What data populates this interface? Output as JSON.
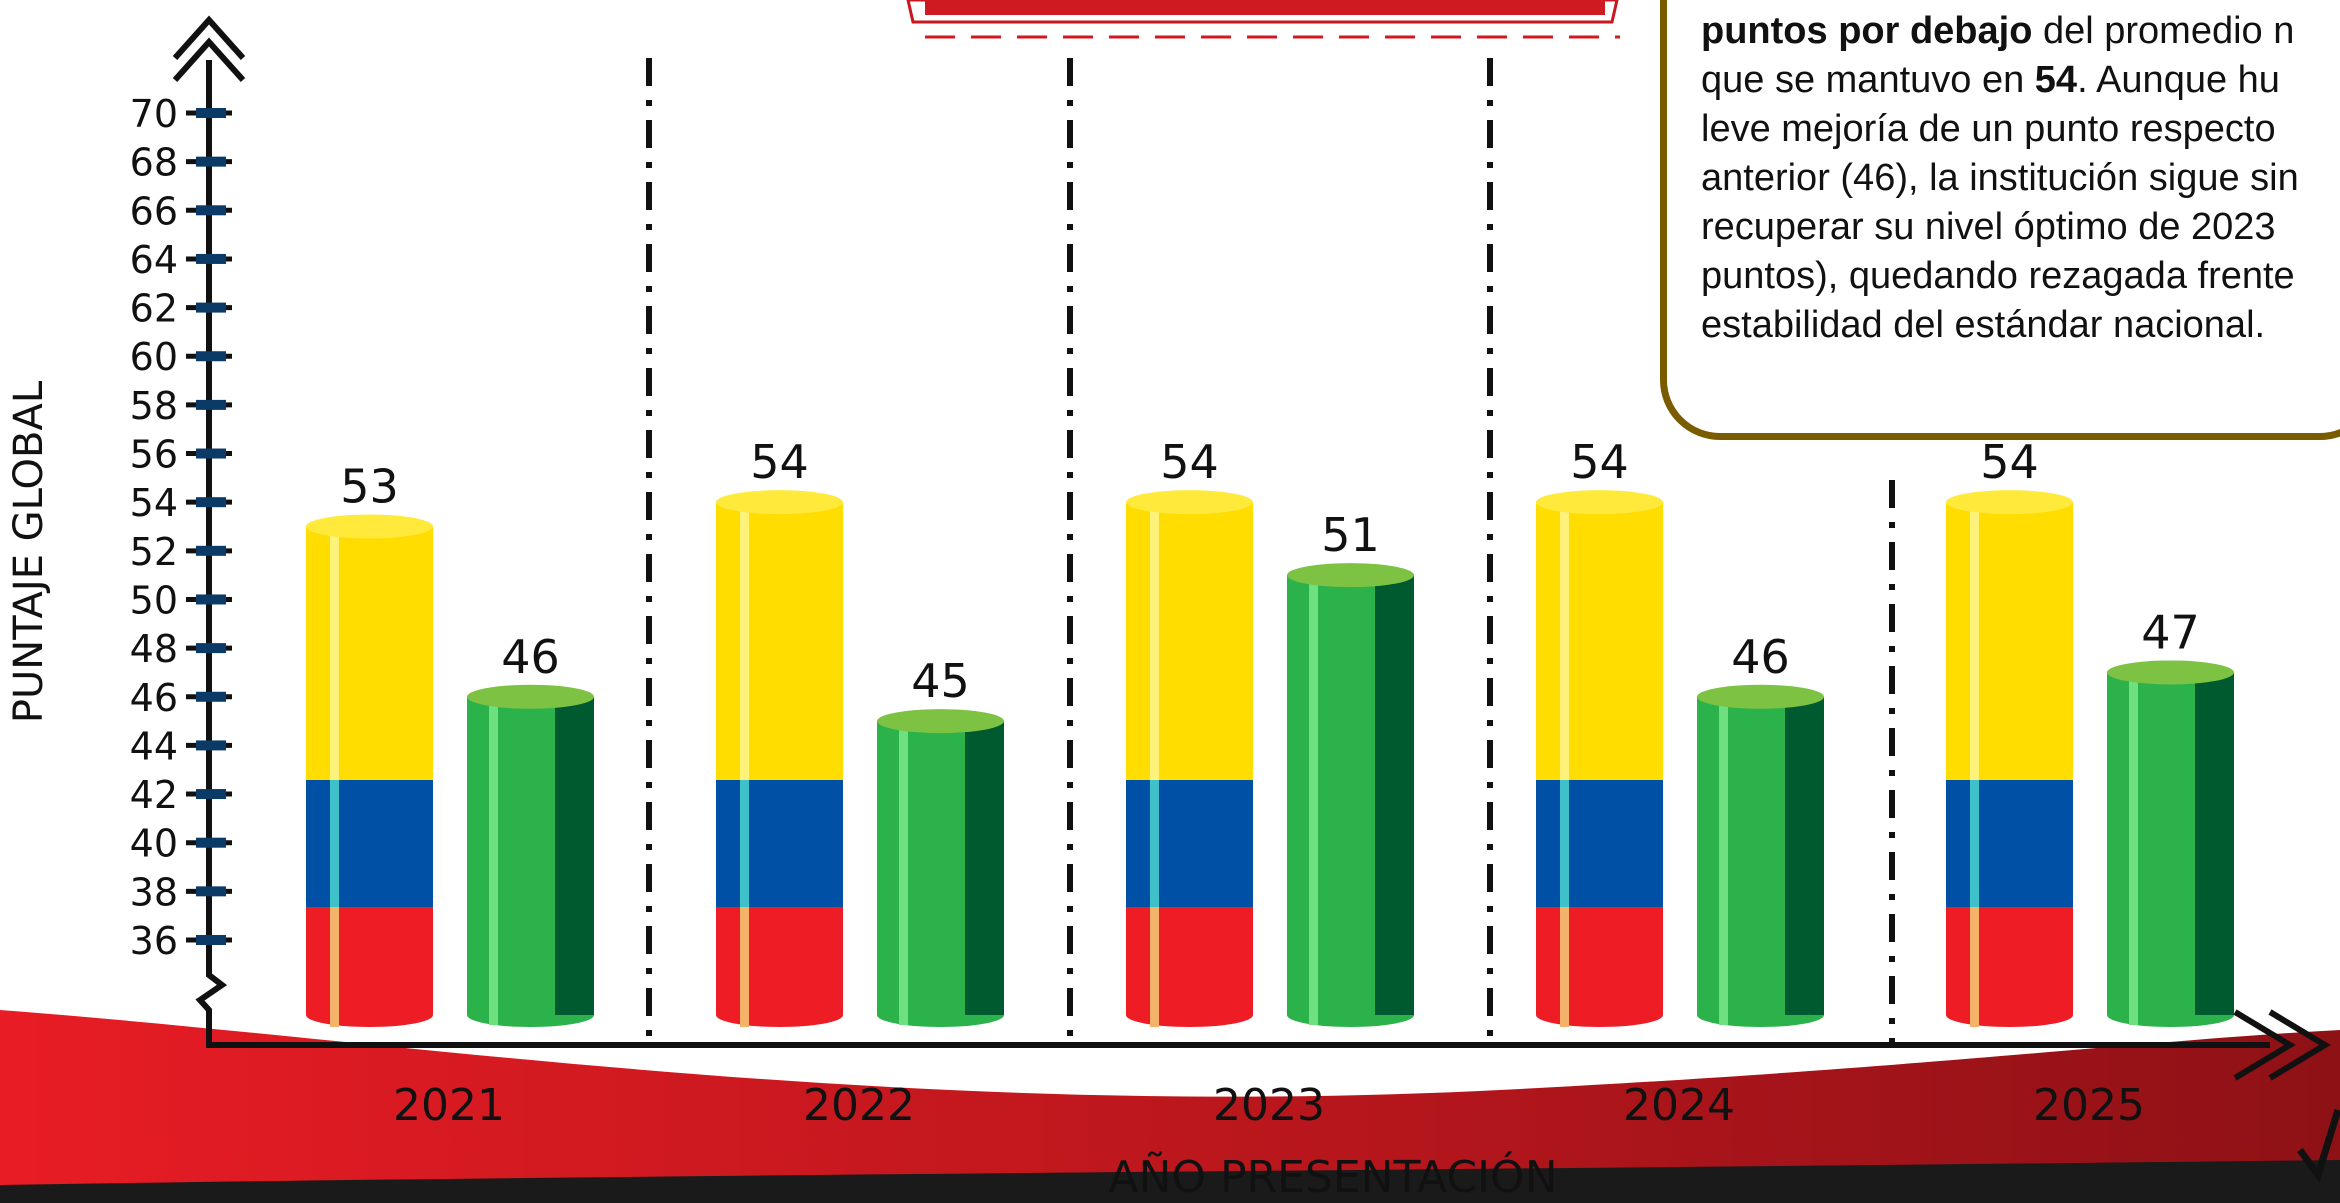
{
  "chart_data": {
    "type": "bar",
    "y_label": "PUNTAJE GLOBAL",
    "x_label": "AÑO PRESENTACIÓN",
    "categories": [
      "2021",
      "2022",
      "2023",
      "2024",
      "2025"
    ],
    "series": [
      {
        "color": "#ffdd00",
        "values": [
          53,
          54,
          54,
          54,
          54
        ]
      },
      {
        "color": "#2cb24b",
        "values": [
          46,
          45,
          51,
          46,
          47
        ]
      }
    ],
    "ylim": [
      36,
      70
    ],
    "yticks": [
      36,
      38,
      40,
      42,
      44,
      46,
      48,
      50,
      52,
      54,
      56,
      58,
      60,
      62,
      64,
      66,
      68,
      70
    ]
  },
  "text_box": {
    "lines": [
      [
        {
          "text": "puntos por debajo",
          "bold": true
        },
        {
          "text": " del promedio n"
        }
      ],
      [
        {
          "text": "que se mantuvo en "
        },
        {
          "text": "54",
          "bold": true
        },
        {
          "text": ". Aunque hu"
        }
      ],
      [
        {
          "text": "leve mejoría de un punto respecto"
        }
      ],
      [
        {
          "text": "anterior (46), la institución sigue sin"
        }
      ],
      [
        {
          "text": "recuperar su nivel óptimo de 2023"
        }
      ],
      [
        {
          "text": "puntos), quedando rezagada frente"
        }
      ],
      [
        {
          "text": "estabilidad del estándar nacional."
        }
      ]
    ]
  }
}
